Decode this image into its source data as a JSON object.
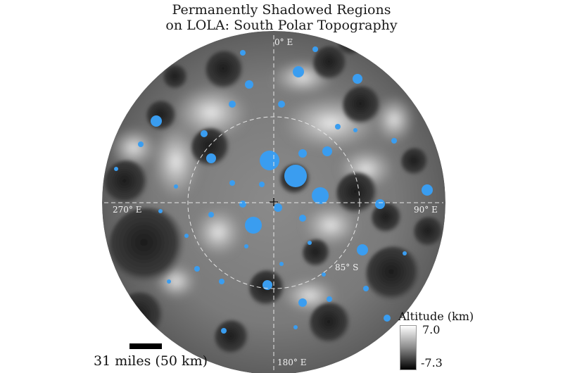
{
  "title_line1": "Permanently Shadowed Regions",
  "title_line2": "on LOLA: South Polar Topography",
  "labels": {
    "top": "0° E",
    "right": "90° E",
    "bottom": "180° E",
    "left": "270° E",
    "latitude_ring": "85° S"
  },
  "scale_bar": {
    "label": "31 miles (50 km)"
  },
  "legend": {
    "title": "Altitude (km)",
    "max": "7.0",
    "min": "-7.3"
  },
  "colors": {
    "shadow": "#3a9df0",
    "background": "#ffffff"
  }
}
